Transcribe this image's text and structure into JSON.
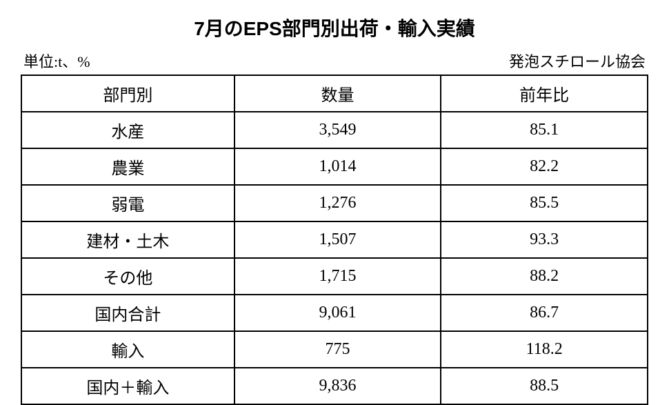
{
  "title": "7月のEPS部門別出荷・輸入実績",
  "unit_label": "単位:t、%",
  "source_label": "発泡スチロール協会",
  "table": {
    "columns": [
      "部門別",
      "数量",
      "前年比"
    ],
    "rows": [
      [
        "水産",
        "3,549",
        "85.1"
      ],
      [
        "農業",
        "1,014",
        "82.2"
      ],
      [
        "弱電",
        "1,276",
        "85.5"
      ],
      [
        "建材・土木",
        "1,507",
        "93.3"
      ],
      [
        "その他",
        "1,715",
        "88.2"
      ],
      [
        "国内合計",
        "9,061",
        "86.7"
      ],
      [
        "輸入",
        "775",
        "118.2"
      ],
      [
        "国内＋輸入",
        "9,836",
        "88.5"
      ]
    ]
  },
  "styling": {
    "background_color": "#ffffff",
    "border_color": "#000000",
    "title_fontsize": 28,
    "body_fontsize": 24,
    "meta_fontsize": 22,
    "column_widths_pct": [
      34,
      33,
      33
    ]
  }
}
